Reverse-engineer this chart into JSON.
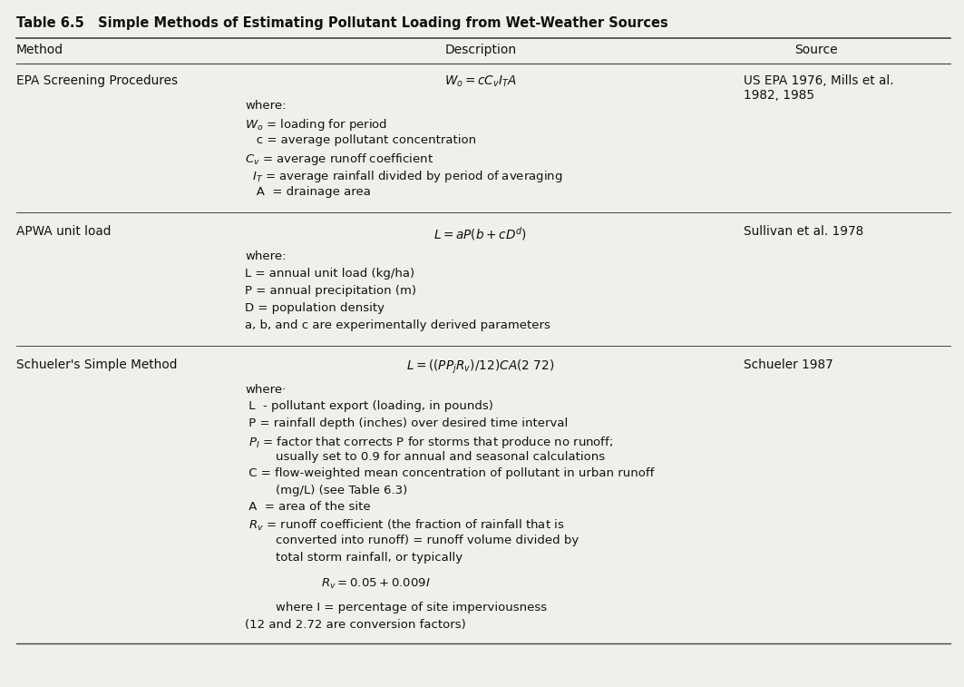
{
  "title": "Table 6.5   Simple Methods of Estimating Pollutant Loading from Wet-Weather Sources",
  "col_headers": [
    "Method",
    "Description",
    "Source"
  ],
  "bg_color": "#efefeb",
  "title_fontsize": 10.5,
  "header_fontsize": 10,
  "body_fontsize": 9.8,
  "detail_fontsize": 9.5,
  "rows": [
    {
      "method": "EPA Screening Procedures",
      "formula": "$W_o = cC_vI_TA$",
      "source": "US EPA 1976, Mills et al.\n1982, 1985",
      "details": [
        "where:",
        "$W_o$ = loading for period",
        "   c = average pollutant concentration",
        "$C_v$ = average runoff coefficient",
        "  $I_T$ = average rainfall divided by period of averaging",
        "   A  = drainage area"
      ]
    },
    {
      "method": "APWA unit load",
      "formula": "$L = aP(b + cD^d)$",
      "source": "Sullivan et al. 1978",
      "details": [
        "where:",
        "L = annual unit load (kg/ha)",
        "P = annual precipitation (m)",
        "D = population density",
        "a, b, and c are experimentally derived parameters"
      ]
    },
    {
      "method": "Schueler's Simple Method",
      "formula": "$L = ((PP_jR_v)/12)CA(2\\ 72)$",
      "source": "Schueler 1987",
      "details": [
        "where·",
        " L  - pollutant export (loading, in pounds)",
        " P = rainfall depth (inches) over desired time interval",
        " $P_I$ = factor that corrects P for storms that produce no runoff;",
        "        usually set to 0.9 for annual and seasonal calculations",
        " C = flow-weighted mean concentration of pollutant in urban runoff",
        "        (mg/L) (see Table 6.3)",
        " A  = area of the site",
        " $R_v$ = runoff coefficient (the fraction of rainfall that is",
        "        converted into runoff) = runoff volume divided by",
        "        total storm rainfall, or typically",
        "",
        "                    $R_v = 0.05 + 0.009I$",
        "",
        "        where I = percentage of site imperviousness",
        "(12 and 2.72 are conversion factors)"
      ]
    }
  ]
}
